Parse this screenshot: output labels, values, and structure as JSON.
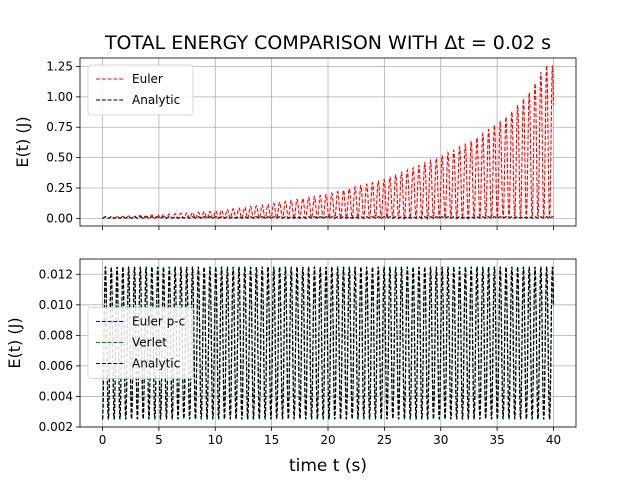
{
  "figure": {
    "title": "TOTAL ENERGY COMPARISON WITH Δt = 0.02 s",
    "xlabel": "time t (s)"
  },
  "colors": {
    "euler": "#ff0000",
    "analytic": "#000000",
    "euler_pc": "#0000ff",
    "verlet": "#008000",
    "grid": "#b0b0b0"
  },
  "chart_data": [
    {
      "type": "line",
      "title": "TOTAL ENERGY COMPARISON WITH Δt = 0.02 s",
      "xlabel": "",
      "ylabel": "E(t) (J)",
      "xlim": [
        -2,
        42
      ],
      "ylim": [
        -0.063,
        1.32
      ],
      "x_ticks": [
        0,
        5,
        10,
        15,
        20,
        25,
        30,
        35,
        40
      ],
      "y_ticks": [
        0.0,
        0.25,
        0.5,
        0.75,
        1.0,
        1.25
      ],
      "y_tick_labels": [
        "0.00",
        "0.25",
        "0.50",
        "0.75",
        "1.00",
        "1.25"
      ],
      "grid": true,
      "legend_position": "upper-left",
      "oscillation_period_s": 1.03,
      "series": [
        {
          "name": "Euler",
          "style": "dashed",
          "color": "#ff0000",
          "min_value": 0.0,
          "peak_envelope": {
            "t": [
              0.5,
              5,
              10,
              15,
              20,
              25,
              30,
              33,
              36,
              38,
              39.2
            ],
            "peak": [
              0.013,
              0.03,
              0.06,
              0.12,
              0.2,
              0.32,
              0.51,
              0.65,
              0.85,
              1.05,
              1.26
            ]
          }
        },
        {
          "name": "Analytic",
          "style": "dashed",
          "color": "#000000",
          "min_value": 0.0025,
          "max_value": 0.0125
        }
      ]
    },
    {
      "type": "line",
      "title": "",
      "xlabel": "time t (s)",
      "ylabel": "E(t) (J)",
      "xlim": [
        -2,
        42
      ],
      "ylim": [
        0.002,
        0.013
      ],
      "x_ticks": [
        0,
        5,
        10,
        15,
        20,
        25,
        30,
        35,
        40
      ],
      "y_ticks": [
        0.002,
        0.004,
        0.006,
        0.008,
        0.01,
        0.012
      ],
      "y_tick_labels": [
        "0.002",
        "0.004",
        "0.006",
        "0.008",
        "0.010",
        "0.012"
      ],
      "grid": true,
      "legend_position": "center-left",
      "oscillation_period_s": 1.03,
      "series": [
        {
          "name": "Euler p-c",
          "style": "dashed",
          "color": "#0000ff",
          "min_value": 0.0025,
          "max_value": 0.0125
        },
        {
          "name": "Verlet",
          "style": "dashed",
          "color": "#008000",
          "min_value": 0.0025,
          "max_value": 0.0125
        },
        {
          "name": "Analytic",
          "style": "dashed",
          "color": "#000000",
          "min_value": 0.0025,
          "max_value": 0.0125
        }
      ]
    }
  ]
}
